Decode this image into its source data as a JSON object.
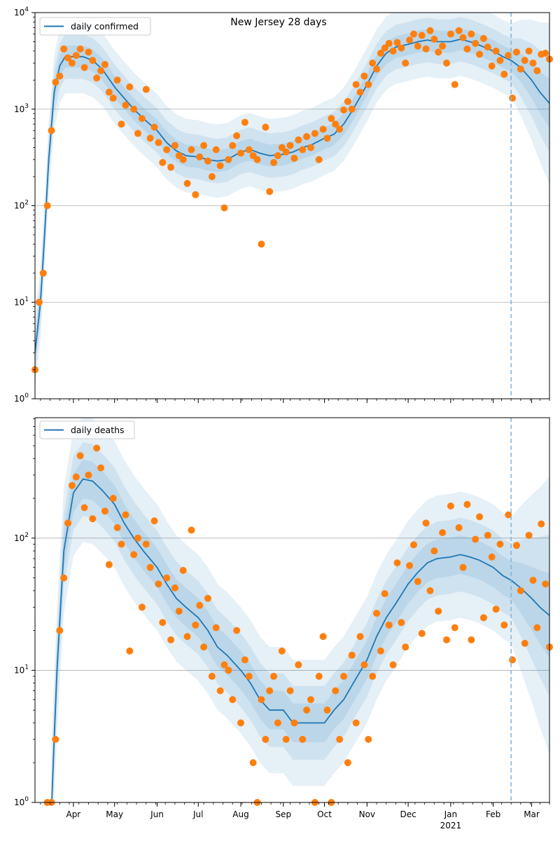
{
  "chart_data": [
    {
      "type": "line",
      "title": "New Jersey 28 days",
      "legend": "daily confirmed",
      "legend_placement": "top-left",
      "yscale": "log",
      "ylim": [
        1,
        10000
      ],
      "y_ticks": [
        {
          "base": "10",
          "exp": "0",
          "value": 1
        },
        {
          "base": "10",
          "exp": "1",
          "value": 10
        },
        {
          "base": "10",
          "exp": "2",
          "value": 100
        },
        {
          "base": "10",
          "exp": "3",
          "value": 1000
        },
        {
          "base": "10",
          "exp": "4",
          "value": 10000
        }
      ],
      "xlim": [
        "2020-03-04",
        "2021-03-14"
      ],
      "forecast_start": "2021-02-14",
      "grid": "y-major",
      "band_factors": [
        1.3,
        1.7,
        2.4
      ],
      "median": [
        [
          "2020-03-04",
          3
        ],
        [
          "2020-03-08",
          10
        ],
        [
          "2020-03-11",
          50
        ],
        [
          "2020-03-14",
          300
        ],
        [
          "2020-03-18",
          1500
        ],
        [
          "2020-03-22",
          2800
        ],
        [
          "2020-03-26",
          3500
        ],
        [
          "2020-04-01",
          3500
        ],
        [
          "2020-04-08",
          3500
        ],
        [
          "2020-04-15",
          3200
        ],
        [
          "2020-04-22",
          2600
        ],
        [
          "2020-05-01",
          1700
        ],
        [
          "2020-05-08",
          1300
        ],
        [
          "2020-05-15",
          1000
        ],
        [
          "2020-05-22",
          800
        ],
        [
          "2020-06-01",
          600
        ],
        [
          "2020-06-08",
          450
        ],
        [
          "2020-06-15",
          370
        ],
        [
          "2020-06-22",
          330
        ],
        [
          "2020-07-01",
          320
        ],
        [
          "2020-07-08",
          300
        ],
        [
          "2020-07-15",
          290
        ],
        [
          "2020-07-22",
          300
        ],
        [
          "2020-08-01",
          360
        ],
        [
          "2020-08-08",
          380
        ],
        [
          "2020-08-15",
          350
        ],
        [
          "2020-08-22",
          330
        ],
        [
          "2020-09-01",
          340
        ],
        [
          "2020-09-08",
          360
        ],
        [
          "2020-09-15",
          400
        ],
        [
          "2020-09-22",
          430
        ],
        [
          "2020-10-01",
          500
        ],
        [
          "2020-10-08",
          550
        ],
        [
          "2020-10-15",
          700
        ],
        [
          "2020-10-22",
          1000
        ],
        [
          "2020-11-01",
          1800
        ],
        [
          "2020-11-08",
          2800
        ],
        [
          "2020-11-15",
          3800
        ],
        [
          "2020-11-22",
          4400
        ],
        [
          "2020-12-01",
          4700
        ],
        [
          "2020-12-08",
          5000
        ],
        [
          "2020-12-15",
          5200
        ],
        [
          "2020-12-22",
          5000
        ],
        [
          "2021-01-01",
          5000
        ],
        [
          "2021-01-08",
          5300
        ],
        [
          "2021-01-15",
          5000
        ],
        [
          "2021-01-22",
          4600
        ],
        [
          "2021-02-01",
          4000
        ],
        [
          "2021-02-08",
          3500
        ],
        [
          "2021-02-14",
          3200
        ],
        [
          "2021-02-21",
          2700
        ],
        [
          "2021-03-01",
          2000
        ],
        [
          "2021-03-07",
          1500
        ],
        [
          "2021-03-14",
          1150
        ]
      ],
      "observed_start": "2020-03-04",
      "observed_step_days": 3,
      "observed": [
        2,
        10,
        20,
        100,
        600,
        1900,
        2200,
        4200,
        3400,
        3000,
        3600,
        4200,
        2700,
        3900,
        3200,
        2100,
        2500,
        2900,
        1500,
        1300,
        2000,
        700,
        1100,
        1700,
        1000,
        560,
        800,
        1600,
        500,
        650,
        450,
        280,
        380,
        250,
        420,
        330,
        300,
        170,
        380,
        130,
        320,
        420,
        290,
        200,
        380,
        260,
        95,
        300,
        420,
        530,
        350,
        730,
        380,
        330,
        300,
        40,
        650,
        140,
        280,
        330,
        400,
        360,
        420,
        310,
        480,
        380,
        520,
        400,
        560,
        300,
        620,
        500,
        800,
        700,
        620,
        980,
        1200,
        1000,
        1800,
        1500,
        2200,
        1800,
        3000,
        2600,
        3800,
        4300,
        4800,
        4000,
        4900,
        4300,
        3000,
        5200,
        6000,
        4500,
        5800,
        4200,
        6500,
        5300,
        3900,
        4500,
        3000,
        6000,
        1800,
        6500,
        5500,
        4200,
        6000,
        4800,
        3700,
        5400,
        4400,
        2800,
        4000,
        3200,
        2300,
        3600,
        1300,
        3900,
        2600,
        3200,
        4000,
        3000,
        2500,
        3700,
        3800,
        3300
      ]
    },
    {
      "type": "line",
      "legend": "daily deaths",
      "legend_placement": "top-left",
      "yscale": "log",
      "ylim": [
        1,
        815
      ],
      "y_ticks": [
        {
          "base": "10",
          "exp": "0",
          "value": 1
        },
        {
          "base": "10",
          "exp": "1",
          "value": 10
        },
        {
          "base": "10",
          "exp": "2",
          "value": 100
        }
      ],
      "xlim": [
        "2020-03-04",
        "2021-03-14"
      ],
      "x_ticks": [
        [
          "2020-04-01",
          "Apr"
        ],
        [
          "2020-05-01",
          "May"
        ],
        [
          "2020-06-01",
          "Jun"
        ],
        [
          "2020-07-01",
          "Jul"
        ],
        [
          "2020-08-01",
          "Aug"
        ],
        [
          "2020-09-01",
          "Sep"
        ],
        [
          "2020-10-01",
          "Oct"
        ],
        [
          "2020-11-01",
          "Nov"
        ],
        [
          "2020-12-01",
          "Dec"
        ],
        [
          "2021-01-01",
          "Jan"
        ],
        [
          "2021-02-01",
          "Feb"
        ],
        [
          "2021-03-01",
          "Mar"
        ]
      ],
      "x_year_label": {
        "date": "2021-01-01",
        "text": "2021"
      },
      "forecast_start": "2021-02-14",
      "grid": "y-major",
      "band_factors": [
        1.4,
        1.9,
        3.0
      ],
      "median": [
        [
          "2020-03-16",
          0.9
        ],
        [
          "2020-03-20",
          10
        ],
        [
          "2020-03-25",
          80
        ],
        [
          "2020-04-01",
          220
        ],
        [
          "2020-04-08",
          280
        ],
        [
          "2020-04-15",
          270
        ],
        [
          "2020-04-22",
          230
        ],
        [
          "2020-05-01",
          180
        ],
        [
          "2020-05-08",
          130
        ],
        [
          "2020-05-15",
          100
        ],
        [
          "2020-05-22",
          80
        ],
        [
          "2020-06-01",
          60
        ],
        [
          "2020-06-08",
          45
        ],
        [
          "2020-06-15",
          35
        ],
        [
          "2020-06-22",
          30
        ],
        [
          "2020-07-01",
          25
        ],
        [
          "2020-07-08",
          20
        ],
        [
          "2020-07-15",
          15
        ],
        [
          "2020-07-22",
          13
        ],
        [
          "2020-08-01",
          10
        ],
        [
          "2020-08-08",
          8
        ],
        [
          "2020-08-15",
          6
        ],
        [
          "2020-08-22",
          5
        ],
        [
          "2020-09-01",
          5
        ],
        [
          "2020-09-08",
          4
        ],
        [
          "2020-09-15",
          4
        ],
        [
          "2020-09-22",
          4
        ],
        [
          "2020-10-01",
          4
        ],
        [
          "2020-10-08",
          5
        ],
        [
          "2020-10-15",
          6
        ],
        [
          "2020-10-22",
          8
        ],
        [
          "2020-11-01",
          12
        ],
        [
          "2020-11-08",
          18
        ],
        [
          "2020-11-15",
          25
        ],
        [
          "2020-11-22",
          32
        ],
        [
          "2020-12-01",
          45
        ],
        [
          "2020-12-08",
          55
        ],
        [
          "2020-12-15",
          65
        ],
        [
          "2020-12-22",
          70
        ],
        [
          "2021-01-01",
          72
        ],
        [
          "2021-01-08",
          75
        ],
        [
          "2021-01-15",
          72
        ],
        [
          "2021-01-22",
          68
        ],
        [
          "2021-02-01",
          60
        ],
        [
          "2021-02-08",
          52
        ],
        [
          "2021-02-14",
          48
        ],
        [
          "2021-02-21",
          42
        ],
        [
          "2021-03-01",
          35
        ],
        [
          "2021-03-07",
          30
        ],
        [
          "2021-03-14",
          26
        ]
      ],
      "observed_start": "2020-03-13",
      "observed_step_days": 3,
      "observed": [
        1,
        1,
        3,
        20,
        50,
        130,
        250,
        290,
        420,
        170,
        300,
        140,
        480,
        340,
        160,
        63,
        200,
        120,
        90,
        150,
        14,
        75,
        100,
        30,
        90,
        60,
        135,
        45,
        23,
        50,
        17,
        42,
        28,
        57,
        18,
        115,
        22,
        31,
        15,
        35,
        9,
        21,
        7,
        11,
        10,
        6,
        20,
        4,
        12,
        9,
        2,
        1,
        6,
        3,
        7,
        9,
        4,
        14,
        3,
        7,
        4,
        11,
        3,
        5,
        6,
        1,
        9,
        18,
        5,
        1,
        7,
        3,
        9,
        2,
        13,
        4,
        18,
        11,
        3,
        9,
        27,
        14,
        38,
        22,
        11,
        65,
        23,
        15,
        62,
        89,
        47,
        19,
        130,
        40,
        80,
        28,
        110,
        17,
        175,
        21,
        120,
        60,
        180,
        17,
        98,
        145,
        25,
        105,
        72,
        29,
        90,
        22,
        150,
        12,
        88,
        40,
        16,
        105,
        48,
        21,
        128,
        45,
        15
      ]
    }
  ],
  "colors": {
    "line": "#1f77b4",
    "points": "#ff7f0e",
    "grid": "#b0b0b0",
    "forecast_line": "#7fb2d9"
  }
}
